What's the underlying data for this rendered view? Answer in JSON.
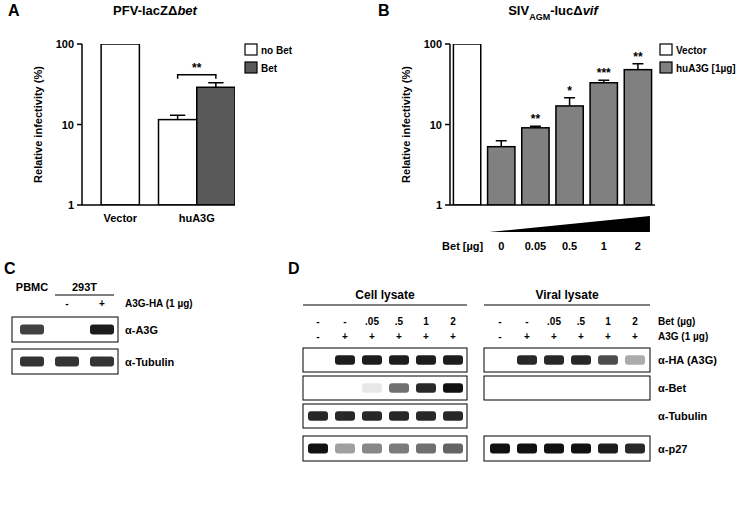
{
  "chart_data": [
    {
      "type": "bar",
      "panel": "A",
      "title": [
        {
          "text": "PFV-lacZΔ"
        },
        {
          "text": "bet",
          "style": "italic"
        }
      ],
      "y_label": "Relative infectivity (%)",
      "categories": [
        "Vector",
        "huA3G"
      ],
      "series": [
        {
          "name": "no Bet",
          "color": "#ffffff",
          "values": [
            100,
            11.5
          ],
          "errors": [
            null,
            1.5
          ]
        },
        {
          "name": "Bet",
          "color": "#595959",
          "values": [
            null,
            29
          ],
          "errors": [
            null,
            4
          ]
        }
      ],
      "annotations": [
        {
          "text": "**",
          "category": "huA3G"
        }
      ],
      "ylim": [
        1,
        100
      ],
      "yticks": [
        1,
        10,
        100
      ],
      "log": "y",
      "grid": false,
      "legend": "top-right"
    },
    {
      "type": "bar",
      "panel": "B",
      "title": [
        {
          "text": "SIV"
        },
        {
          "text": "AGM",
          "style": "subscript"
        },
        {
          "text": "-lucΔ"
        },
        {
          "text": "vif",
          "style": "italic"
        }
      ],
      "y_label": "Relative infectivity (%)",
      "x_label": "Bet [µg]",
      "categories": [
        null,
        "0",
        "0.05",
        "0.5",
        "1",
        "2"
      ],
      "series": [
        {
          "name": "Vector",
          "color": "#ffffff",
          "values": [
            100,
            null,
            null,
            null,
            null,
            null
          ],
          "errors": [
            null,
            null,
            null,
            null,
            null,
            null
          ]
        },
        {
          "name": "huA3G [1µg]",
          "color": "#808080",
          "values": [
            null,
            5.3,
            9.1,
            17,
            33,
            48
          ],
          "errors": [
            null,
            1.0,
            0.4,
            4.5,
            2.5,
            9
          ]
        }
      ],
      "significance": [
        null,
        null,
        "**",
        "*",
        "***",
        "**"
      ],
      "ylim": [
        1,
        100
      ],
      "yticks": [
        1,
        10,
        100
      ],
      "log": "y",
      "grid": false,
      "legend": "top-right"
    }
  ],
  "blots": [
    {
      "panel": "C",
      "lane_labels": [
        {
          "text": "PBMC",
          "lanes": [
            0
          ]
        },
        {
          "text": "293T",
          "lanes": [
            1,
            2
          ]
        }
      ],
      "condition_labels": [
        "A3G-HA (1 µg)"
      ],
      "groups": [
        {
          "conditions": [
            [
              null,
              "-",
              "+"
            ]
          ]
        }
      ],
      "rows": [
        {
          "antibody": "α-A3G",
          "intensity": [
            [
              0.8,
              0,
              0.95
            ]
          ]
        },
        {
          "antibody": "α-Tubulin",
          "intensity": [
            [
              0.85,
              0.85,
              0.85
            ]
          ]
        }
      ]
    },
    {
      "panel": "D",
      "condition_labels": [
        "Bet (µg)",
        "A3G (1 µg)"
      ],
      "groups": [
        {
          "label": "Cell lysate",
          "conditions": [
            [
              "-",
              "-",
              ".05",
              ".5",
              "1",
              "2"
            ],
            [
              "-",
              "+",
              "+",
              "+",
              "+",
              "+"
            ]
          ]
        },
        {
          "label": "Viral lysate",
          "conditions": [
            [
              "-",
              "-",
              ".05",
              ".5",
              "1",
              "2"
            ],
            [
              "-",
              "+",
              "+",
              "+",
              "+",
              "+"
            ]
          ]
        }
      ],
      "rows": [
        {
          "antibody": "α-HA (A3G)",
          "intensity": [
            [
              0,
              0.95,
              0.95,
              0.95,
              0.95,
              0.95
            ],
            [
              0,
              0.9,
              0.9,
              0.9,
              0.75,
              0.35
            ]
          ]
        },
        {
          "antibody": "α-Bet",
          "intensity": [
            [
              0,
              0,
              0.1,
              0.6,
              0.9,
              1
            ],
            [
              0,
              0,
              0,
              0,
              0,
              0
            ]
          ]
        },
        {
          "antibody": "α-Tubulin",
          "intensity": [
            [
              0.9,
              0.9,
              0.9,
              0.9,
              0.9,
              0.9
            ],
            null
          ]
        },
        {
          "antibody": "α-p27",
          "intensity": [
            [
              1,
              0.4,
              0.5,
              0.55,
              0.6,
              0.65
            ],
            [
              1,
              1,
              1,
              1,
              0.95,
              0.9
            ]
          ]
        }
      ]
    }
  ]
}
